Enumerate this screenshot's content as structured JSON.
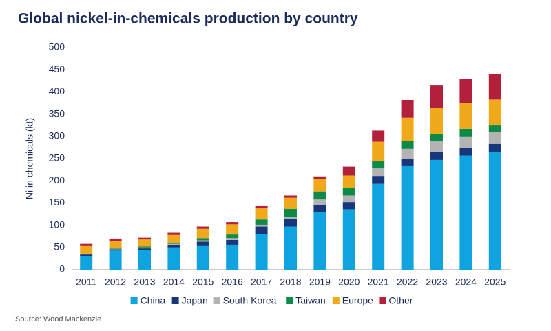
{
  "chart_data": {
    "type": "stacked-bar",
    "title": "Global nickel-in-chemicals  production by country",
    "y_label": "Ni in chemicals (kt)",
    "source": "Source: Wood Mackenzie",
    "categories": [
      "2011",
      "2012",
      "2013",
      "2014",
      "2015",
      "2016",
      "2017",
      "2018",
      "2019",
      "2020",
      "2021",
      "2022",
      "2023",
      "2024",
      "2025"
    ],
    "series": [
      {
        "name": "China",
        "color": "#0fa3df",
        "values": [
          31,
          43,
          45,
          50,
          53,
          56,
          80,
          97,
          130,
          136,
          193,
          233,
          247,
          257,
          265
        ]
      },
      {
        "name": "Japan",
        "color": "#17377a",
        "values": [
          3,
          3,
          3,
          5,
          10,
          11,
          17,
          17,
          16,
          16,
          18,
          17,
          18,
          17,
          18
        ]
      },
      {
        "name": "South Korea",
        "color": "#b3b3b3",
        "values": [
          1,
          1,
          2,
          3,
          3,
          4,
          4,
          5,
          12,
          15,
          17,
          22,
          24,
          26,
          26
        ]
      },
      {
        "name": "Taiwan",
        "color": "#0b8a48",
        "values": [
          1,
          1,
          2,
          3,
          5,
          8,
          12,
          18,
          18,
          17,
          17,
          17,
          17,
          17,
          17
        ]
      },
      {
        "name": "Europe",
        "color": "#efa91a",
        "values": [
          17,
          17,
          16,
          17,
          21,
          23,
          25,
          25,
          28,
          28,
          43,
          53,
          58,
          58,
          57
        ]
      },
      {
        "name": "Other",
        "color": "#b2203b",
        "values": [
          5,
          5,
          4,
          5,
          5,
          5,
          5,
          5,
          6,
          20,
          25,
          40,
          52,
          55,
          58
        ]
      }
    ],
    "ylim": [
      0,
      500
    ],
    "yticks": [
      0,
      50,
      100,
      150,
      200,
      250,
      300,
      350,
      400,
      450,
      500
    ]
  }
}
